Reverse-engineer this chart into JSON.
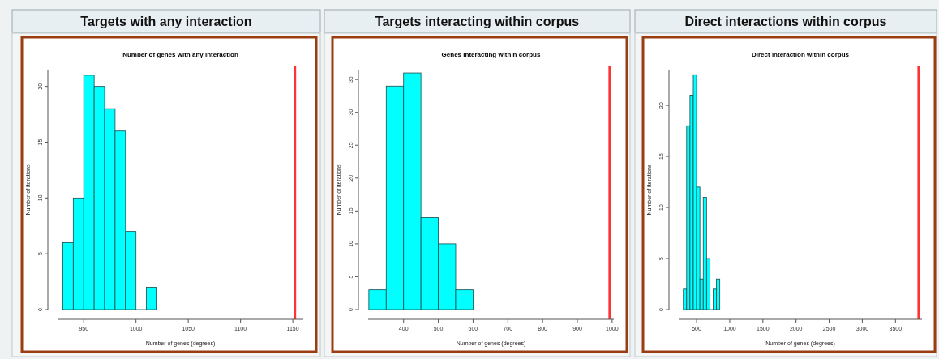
{
  "chart_data": [
    {
      "type": "histogram",
      "title": "Targets with any interaction",
      "subtitle": "Number of genes with any interaction",
      "xlabel": "Number of genes (degrees)",
      "ylabel": "Number of iterations",
      "bins": [
        930,
        940,
        950,
        960,
        970,
        980,
        990,
        1000,
        1010,
        1020
      ],
      "values": [
        6,
        10,
        21,
        20,
        18,
        16,
        7,
        0,
        2
      ],
      "color": "#00ffff",
      "xlim": [
        925,
        1160
      ],
      "xticks": [
        950,
        1000,
        1050,
        1100,
        1150
      ],
      "ylim": [
        0,
        21.5
      ],
      "yticks": [
        0,
        5,
        10,
        15,
        20
      ],
      "ref_lines": [
        {
          "axis": "x",
          "value": 1152,
          "color": "#ff3333"
        }
      ],
      "grid": false
    },
    {
      "type": "histogram",
      "title": "Targets interacting within corpus",
      "subtitle": "Genes interacting within corpus",
      "xlabel": "Number of genes (degrees)",
      "ylabel": "Number of iterations",
      "bins": [
        300,
        350,
        400,
        450,
        500,
        550,
        600
      ],
      "values": [
        3,
        34,
        36,
        14,
        10,
        3
      ],
      "color": "#00ffff",
      "xlim": [
        298,
        1005
      ],
      "xticks": [
        400,
        500,
        600,
        700,
        800,
        900,
        1000
      ],
      "ylim": [
        0,
        36.5
      ],
      "yticks": [
        0,
        5,
        10,
        15,
        20,
        25,
        30,
        35
      ],
      "ref_lines": [
        {
          "axis": "x",
          "value": 993,
          "color": "#ff3333"
        }
      ],
      "grid": false
    },
    {
      "type": "histogram",
      "title": "Direct interactions within corpus",
      "subtitle": "Direct interaction within corpus",
      "xlabel": "Number of genes (degrees)",
      "ylabel": "Number of iterations",
      "bins": [
        300,
        350,
        400,
        450,
        500,
        550,
        600,
        650,
        700,
        750,
        800,
        850
      ],
      "values": [
        2,
        18,
        21,
        23,
        12,
        3,
        11,
        5,
        0,
        2,
        3
      ],
      "color": "#00ffff",
      "xlim": [
        230,
        3900
      ],
      "xticks": [
        500,
        1000,
        1500,
        2000,
        2500,
        3000,
        3500
      ],
      "ylim": [
        0,
        23.5
      ],
      "yticks": [
        0,
        5,
        10,
        15,
        20
      ],
      "ref_lines": [
        {
          "axis": "x",
          "value": 3850,
          "color": "#ff3333"
        }
      ],
      "grid": false
    }
  ]
}
